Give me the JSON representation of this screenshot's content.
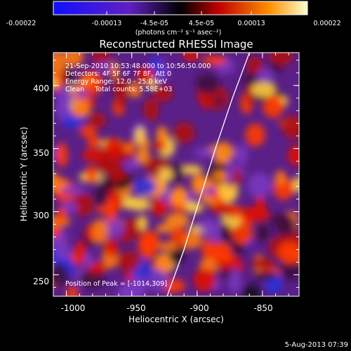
{
  "chart_data": {
    "type": "heatmap",
    "title": "Reconstructed RHESSI Image",
    "xlabel": "Heliocentric X (arcsec)",
    "ylabel": "Heliocentric Y (arcsec)",
    "xlim": [
      -1010,
      -822
    ],
    "ylim": [
      233,
      426
    ],
    "x_ticks": [
      -1000,
      -950,
      -900,
      -850
    ],
    "y_ticks": [
      250,
      300,
      350,
      400
    ],
    "colorbar": {
      "ticks": [
        "-0.00022",
        "-0.00013",
        "-4.5e-05",
        "4.5e-05",
        "0.00013",
        "0.00022"
      ],
      "unit_label": "(photons cm⁻² s⁻¹ asec⁻²)",
      "range": [
        -0.00022,
        0.00022
      ]
    },
    "annotations": {
      "time_range": "21-Sep-2010 10:53:48.000 to 10:56:50.000",
      "detectors": "Detectors: 4F 5F 6F 7F 8F, Att 0",
      "energy": "Energy Range: 12.0 - 25.0 keV",
      "clean": "Clean     Total counts: 5.58E+03",
      "peak": "Position of Peak = [-1014,309]"
    },
    "limb_curve": [
      [
        -923,
        233
      ],
      [
        -910,
        270
      ],
      [
        -898,
        310
      ],
      [
        -886,
        350
      ],
      [
        -873,
        390
      ],
      [
        -860,
        426
      ]
    ],
    "colors": {
      "positive_high": "#ffffc0",
      "positive_mid": "#ff5000",
      "zero": "#000000",
      "negative_mid": "#7030b0",
      "negative_high": "#0020ff"
    }
  },
  "footer": {
    "date": "5-Aug-2013 07:39"
  }
}
